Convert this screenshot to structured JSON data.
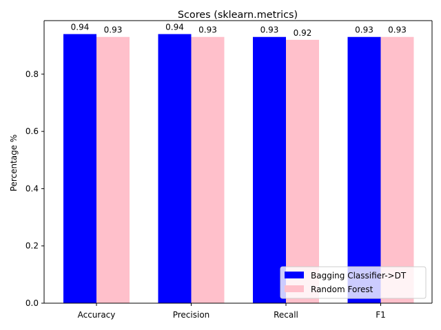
{
  "chart_data": {
    "type": "bar",
    "title": "Scores (sklearn.metrics)",
    "xlabel": "",
    "ylabel": "Percentage %",
    "categories": [
      "Accuracy",
      "Precision",
      "Recall",
      "F1"
    ],
    "series": [
      {
        "name": "Bagging Classifier->DT",
        "color": "#0000ff",
        "values": [
          0.94,
          0.94,
          0.93,
          0.93
        ],
        "labels": [
          "0.94",
          "0.94",
          "0.93",
          "0.93"
        ]
      },
      {
        "name": "Random Forest",
        "color": "#ffc0cb",
        "values": [
          0.93,
          0.93,
          0.92,
          0.93
        ],
        "labels": [
          "0.93",
          "0.93",
          "0.92",
          "0.93"
        ]
      }
    ],
    "ylim": [
      0,
      0.987
    ],
    "yticks": [
      0.0,
      0.2,
      0.4,
      0.6,
      0.8
    ],
    "ytick_labels": [
      "0.0",
      "0.2",
      "0.4",
      "0.6",
      "0.8"
    ],
    "grid": false,
    "legend_position": "lower-right"
  }
}
